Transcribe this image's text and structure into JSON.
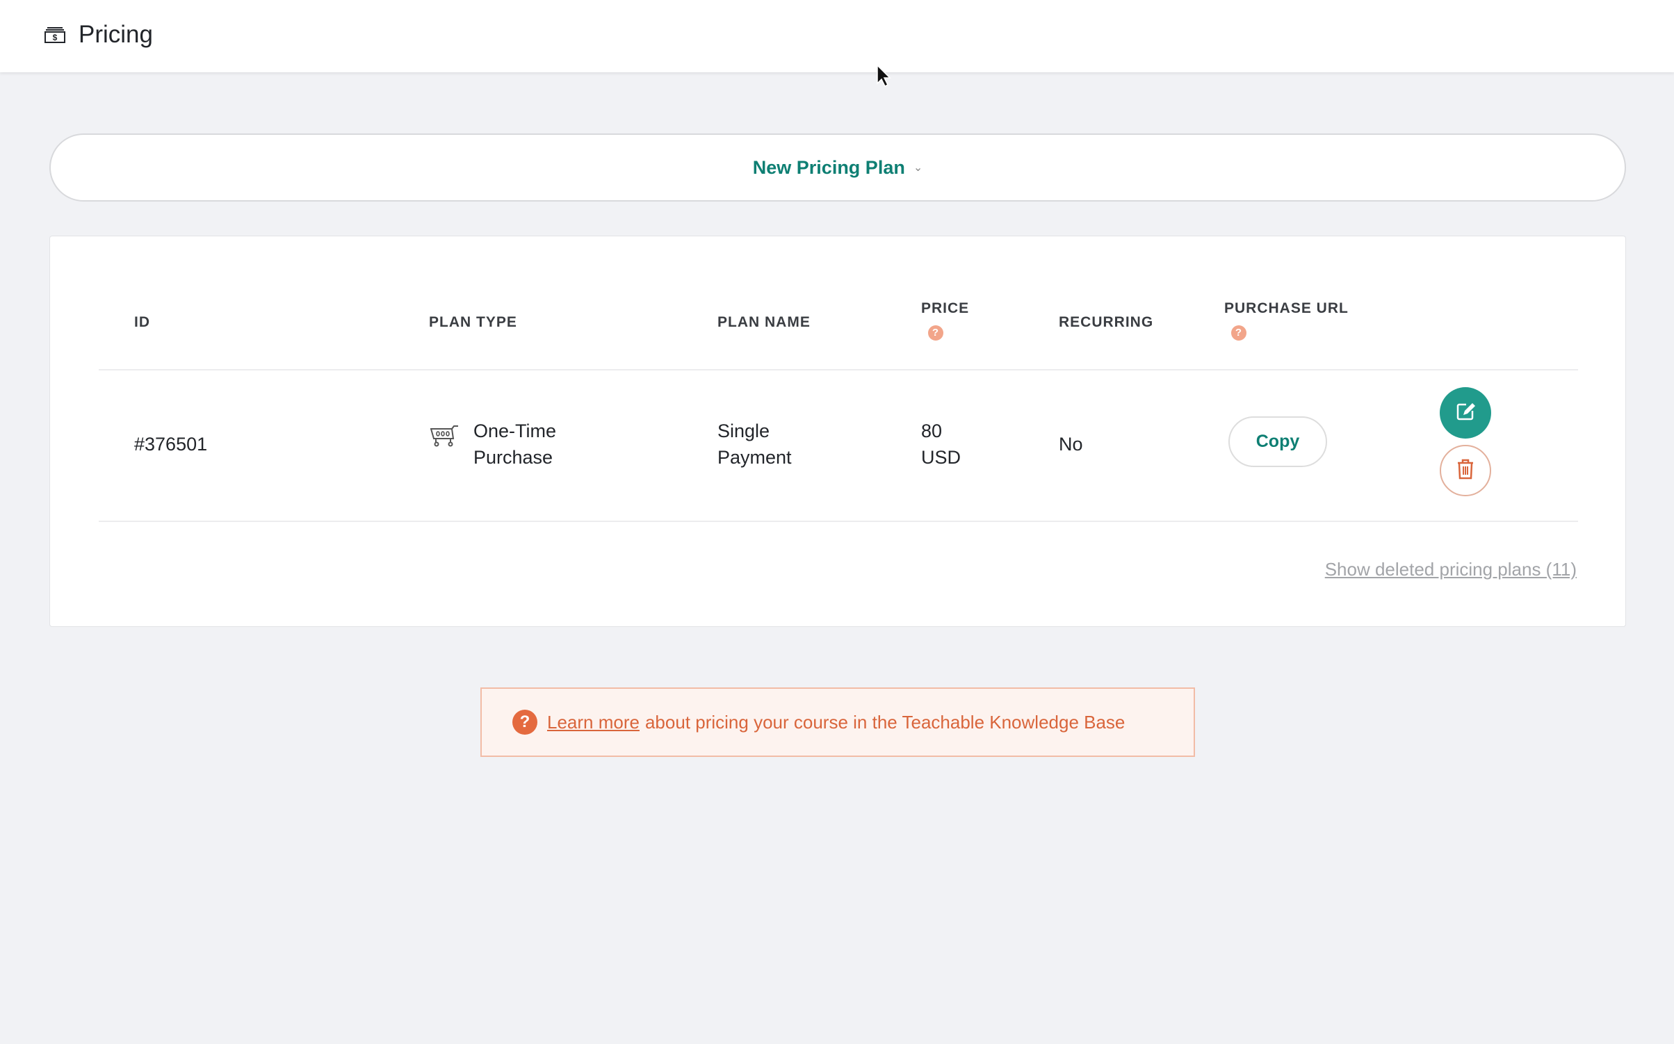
{
  "header": {
    "title": "Pricing",
    "icon": "money-icon"
  },
  "new_plan_button": {
    "label": "New Pricing Plan"
  },
  "table": {
    "columns": [
      "ID",
      "PLAN TYPE",
      "PLAN NAME",
      "PRICE",
      "RECURRING",
      "PURCHASE URL"
    ],
    "rows": [
      {
        "id": "#376501",
        "plan_type_line1": "One-Time",
        "plan_type_line2": "Purchase",
        "plan_name_line1": "Single",
        "plan_name_line2": "Payment",
        "price_amount": "80",
        "price_currency": "USD",
        "recurring": "No",
        "copy_label": "Copy"
      }
    ]
  },
  "show_deleted": "Show deleted pricing plans (11)",
  "info": {
    "link": "Learn more",
    "text": "about pricing your course in the Teachable Knowledge Base"
  },
  "colors": {
    "accent": "#219b8c",
    "danger": "#d9653b",
    "background": "#f1f2f5"
  }
}
